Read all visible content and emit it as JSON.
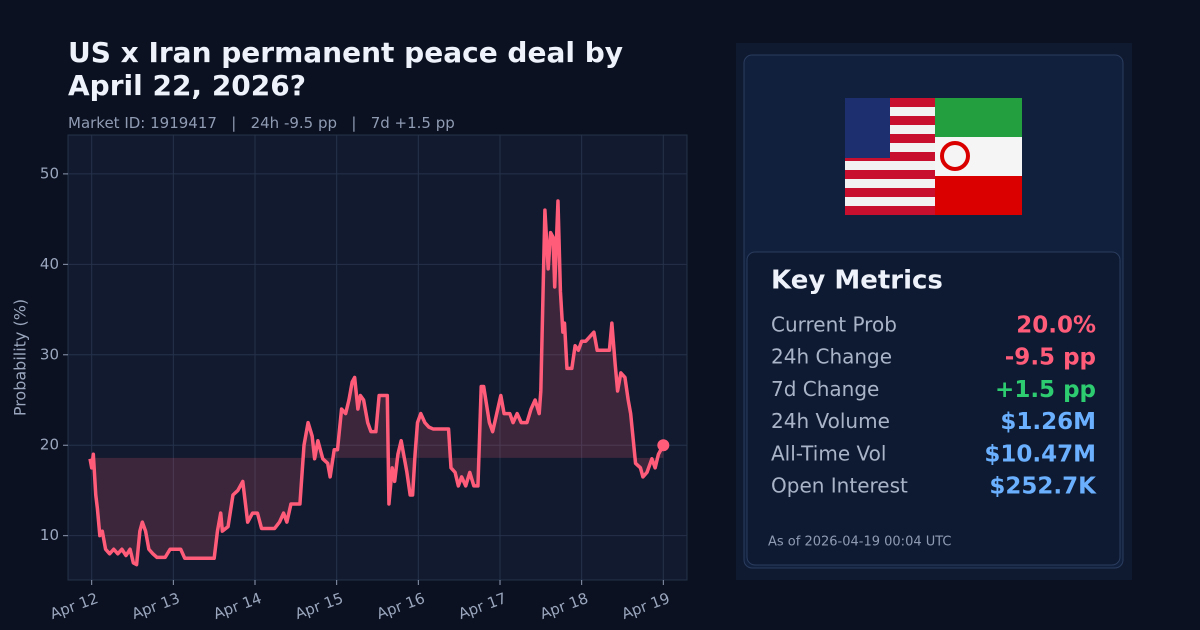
{
  "chart_data": {
    "type": "line",
    "title": "US x Iran permanent peace deal by April 22, 2026?",
    "subtitle": "Market ID: 1919417   |   24h -9.5 pp   |   7d +1.5 pp",
    "ylabel": "Probability (%)",
    "xlim": [
      11.71,
      19.29
    ],
    "ylim": [
      5.1,
      54.3
    ],
    "xticks": [
      {
        "value": 12,
        "label": "Apr 12"
      },
      {
        "value": 13,
        "label": "Apr 13"
      },
      {
        "value": 14,
        "label": "Apr 14"
      },
      {
        "value": 15,
        "label": "Apr 15"
      },
      {
        "value": 16,
        "label": "Apr 16"
      },
      {
        "value": 17,
        "label": "Apr 17"
      },
      {
        "value": 18,
        "label": "Apr 18"
      },
      {
        "value": 19,
        "label": "Apr 19"
      }
    ],
    "yticks": [
      10,
      20,
      30,
      40,
      50
    ],
    "grid": true,
    "fill_baseline": 18.6,
    "end_marker": true,
    "series": [
      {
        "color": "#ff5c7a",
        "x": [
          11.98,
          12.0,
          12.02,
          12.05,
          12.07,
          12.1,
          12.13,
          12.17,
          12.22,
          12.27,
          12.32,
          12.37,
          12.42,
          12.47,
          12.51,
          12.55,
          12.59,
          12.62,
          12.66,
          12.7,
          12.75,
          12.8,
          12.9,
          12.96,
          13.09,
          13.14,
          13.5,
          13.54,
          13.58,
          13.6,
          13.67,
          13.73,
          13.79,
          13.85,
          13.91,
          13.97,
          14.03,
          14.08,
          14.24,
          14.3,
          14.35,
          14.39,
          14.44,
          14.55,
          14.6,
          14.65,
          14.7,
          14.73,
          14.77,
          14.83,
          14.89,
          14.92,
          14.97,
          15.01,
          15.06,
          15.11,
          15.15,
          15.19,
          15.22,
          15.26,
          15.29,
          15.33,
          15.38,
          15.42,
          15.48,
          15.52,
          15.62,
          15.64,
          15.68,
          15.71,
          15.75,
          15.79,
          15.82,
          15.86,
          15.9,
          15.93,
          15.96,
          15.99,
          16.03,
          16.08,
          16.13,
          16.18,
          16.28,
          16.37,
          16.4,
          16.45,
          16.49,
          16.53,
          16.58,
          16.63,
          16.68,
          16.73,
          16.77,
          16.8,
          16.87,
          16.91,
          16.96,
          17.01,
          17.05,
          17.12,
          17.16,
          17.21,
          17.26,
          17.33,
          17.38,
          17.43,
          17.48,
          17.5,
          17.55,
          17.59,
          17.62,
          17.65,
          17.67,
          17.71,
          17.74,
          17.77,
          17.79,
          17.82,
          17.88,
          17.92,
          17.96,
          18.0,
          18.05,
          18.1,
          18.15,
          18.19,
          18.34,
          18.37,
          18.41,
          18.44,
          18.48,
          18.53,
          18.57,
          18.6,
          18.66,
          18.72,
          18.75,
          18.8,
          18.86,
          18.9,
          18.94,
          19.0
        ],
        "values": [
          18.5,
          17.5,
          19,
          14.5,
          13,
          10,
          10.5,
          8.5,
          8,
          8.5,
          8,
          8.5,
          7.8,
          8.5,
          7,
          6.8,
          10.5,
          11.5,
          10.5,
          8.5,
          8,
          7.6,
          7.6,
          8.5,
          8.5,
          7.5,
          7.5,
          10.5,
          12.5,
          10.5,
          11,
          14.5,
          15,
          16,
          11.5,
          12.5,
          12.5,
          10.8,
          10.8,
          11.5,
          12.5,
          11.5,
          13.5,
          13.5,
          20,
          22.5,
          21,
          18.5,
          20.5,
          18.5,
          18,
          16.5,
          19.5,
          19.5,
          24,
          23.5,
          25,
          27,
          27.5,
          24,
          25.5,
          25,
          22.5,
          21.5,
          21.5,
          25.5,
          25.5,
          13.5,
          17.5,
          16,
          19,
          20.5,
          19,
          17,
          14.5,
          14.5,
          19,
          22.5,
          23.5,
          22.5,
          22,
          21.8,
          21.8,
          21.8,
          17.5,
          17,
          15.5,
          16.5,
          15.5,
          17,
          15.5,
          15.5,
          26.5,
          26.5,
          22.5,
          21.5,
          23.5,
          25.5,
          23.5,
          23.5,
          22.5,
          23.5,
          22.5,
          22.5,
          24,
          25,
          23.5,
          26,
          46,
          39.5,
          43.5,
          43,
          37.5,
          47,
          37,
          32.5,
          33.5,
          28.5,
          28.5,
          31,
          30.5,
          31.5,
          31.5,
          32,
          32.5,
          30.5,
          30.5,
          33.5,
          29,
          26,
          28,
          27.5,
          25,
          23.5,
          18,
          17.5,
          16.5,
          17,
          18.5,
          17.5,
          19,
          20
        ]
      }
    ]
  },
  "panel": {
    "title": "Key Metrics",
    "metrics": [
      {
        "label": "Current Prob",
        "value": "20.0%",
        "color": "#ff5c7a"
      },
      {
        "label": "24h Change",
        "value": "-9.5 pp",
        "color": "#ff5c7a"
      },
      {
        "label": "7d Change",
        "value": "+1.5 pp",
        "color": "#2ecc71"
      },
      {
        "label": "24h Volume",
        "value": "$1.26M",
        "color": "#6ab0ff"
      },
      {
        "label": "All-Time Vol",
        "value": "$10.47M",
        "color": "#6ab0ff"
      },
      {
        "label": "Open Interest",
        "value": "$252.7K",
        "color": "#6ab0ff"
      }
    ],
    "footnote": "As of 2026-04-19 00:04 UTC"
  }
}
